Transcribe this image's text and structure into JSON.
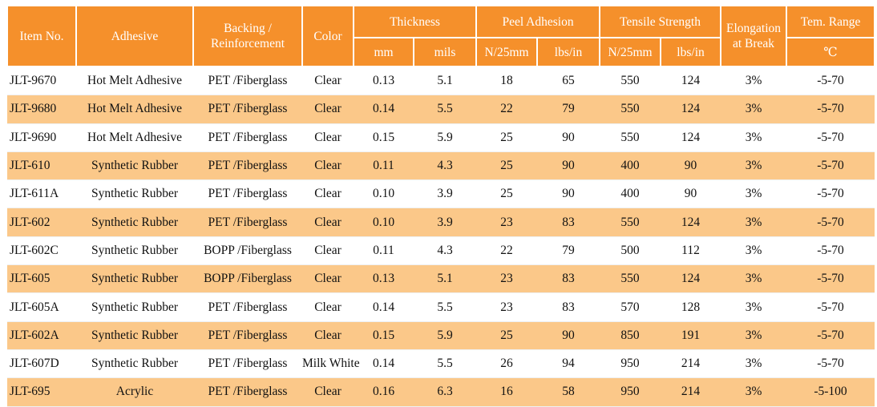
{
  "headers": {
    "item_no": "Item No.",
    "adhesive": "Adhesive",
    "backing_line1": "Backing /",
    "backing_line2": "Reinforcement",
    "color": "Color",
    "thickness": "Thickness",
    "peel_adhesion": "Peel Adhesion",
    "tensile_strength": "Tensile Strength",
    "elongation_line1": "Elongation",
    "elongation_line2": "at Break",
    "tem_range": "Tem. Range",
    "sub": {
      "thickness_mm": "mm",
      "thickness_mils": "mils",
      "peel_n25mm": "N/25mm",
      "peel_lbsin": "lbs/in",
      "tensile_n25mm": "N/25mm",
      "tensile_lbsin": "lbs/in",
      "tem_unit": "℃"
    }
  },
  "rows": [
    [
      "JLT-9670",
      "Hot Melt Adhesive",
      "PET /Fiberglass",
      "Clear",
      "0.13",
      "5.1",
      "18",
      "65",
      "550",
      "124",
      "3%",
      "-5-70"
    ],
    [
      "JLT-9680",
      "Hot Melt Adhesive",
      "PET /Fiberglass",
      "Clear",
      "0.14",
      "5.5",
      "22",
      "79",
      "550",
      "124",
      "3%",
      "-5-70"
    ],
    [
      "JLT-9690",
      "Hot Melt Adhesive",
      "PET /Fiberglass",
      "Clear",
      "0.15",
      "5.9",
      "25",
      "90",
      "550",
      "124",
      "3%",
      "-5-70"
    ],
    [
      "JLT-610",
      "Synthetic Rubber",
      "PET /Fiberglass",
      "Clear",
      "0.11",
      "4.3",
      "25",
      "90",
      "400",
      "90",
      "3%",
      "-5-70"
    ],
    [
      "JLT-611A",
      "Synthetic Rubber",
      "PET /Fiberglass",
      "Clear",
      "0.10",
      "3.9",
      "25",
      "90",
      "400",
      "90",
      "3%",
      "-5-70"
    ],
    [
      "JLT-602",
      "Synthetic Rubber",
      "PET /Fiberglass",
      "Clear",
      "0.10",
      "3.9",
      "23",
      "83",
      "550",
      "124",
      "3%",
      "-5-70"
    ],
    [
      "JLT-602C",
      "Synthetic Rubber",
      "BOPP /Fiberglass",
      "Clear",
      "0.11",
      "4.3",
      "22",
      "79",
      "500",
      "112",
      "3%",
      "-5-70"
    ],
    [
      "JLT-605",
      "Synthetic Rubber",
      "BOPP /Fiberglass",
      "Clear",
      "0.13",
      "5.1",
      "23",
      "83",
      "550",
      "124",
      "3%",
      "-5-70"
    ],
    [
      "JLT-605A",
      "Synthetic Rubber",
      "PET /Fiberglass",
      "Clear",
      "0.14",
      "5.5",
      "23",
      "83",
      "570",
      "128",
      "3%",
      "-5-70"
    ],
    [
      "JLT-602A",
      "Synthetic Rubber",
      "PET /Fiberglass",
      "Clear",
      "0.15",
      "5.9",
      "25",
      "90",
      "850",
      "191",
      "3%",
      "-5-70"
    ],
    [
      "JLT-607D",
      "Synthetic Rubber",
      "PET /Fiberglass",
      "Milk White",
      "0.14",
      "5.5",
      "26",
      "94",
      "950",
      "214",
      "3%",
      "-5-70"
    ],
    [
      "JLT-695",
      "Acrylic",
      "PET /Fiberglass",
      "Clear",
      "0.16",
      "6.3",
      "16",
      "58",
      "950",
      "214",
      "3%",
      "-5-100"
    ]
  ],
  "colors": {
    "header_bg": "#f5902b",
    "header_text": "#ffffff",
    "alt_row_bg": "#fbc889",
    "row_bg": "#ffffff",
    "text": "#111111"
  }
}
